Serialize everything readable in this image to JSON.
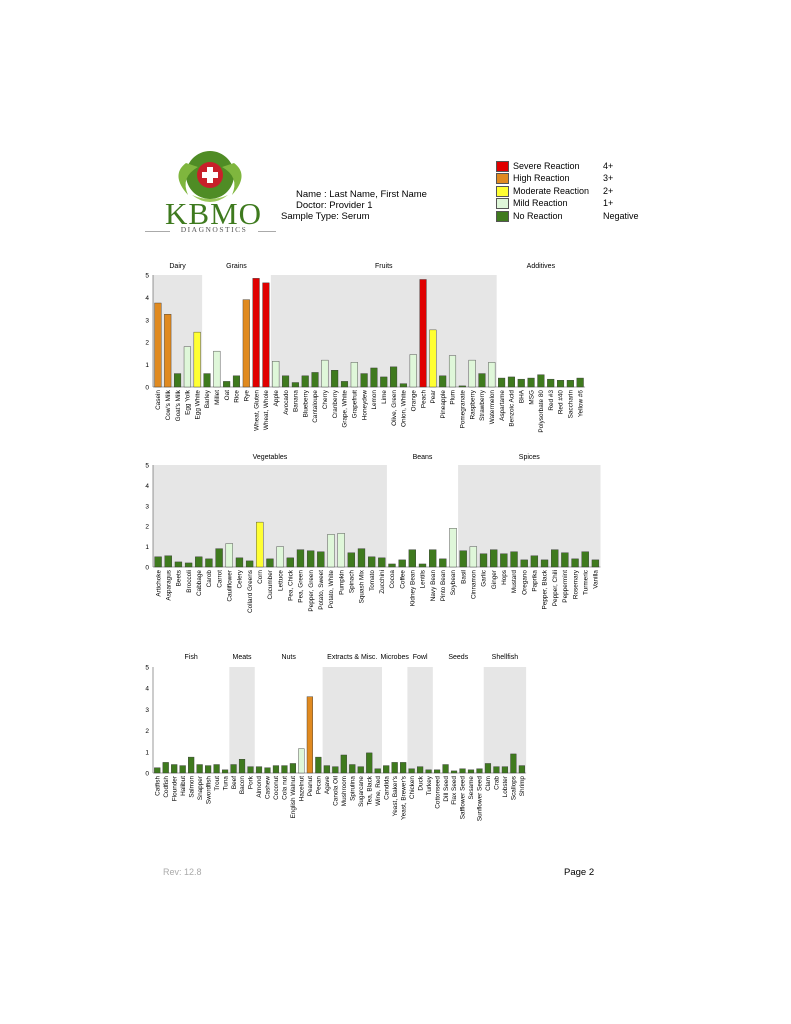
{
  "header": {
    "brand": "KBMO",
    "brand_sub": "DIAGNOSTICS",
    "name_line": "Name : Last Name, First Name",
    "doctor_line": "Doctor: Provider 1",
    "sample_line": "Sample Type: Serum"
  },
  "legend": [
    {
      "label": "Severe Reaction",
      "code": "4+",
      "color": "#e00000"
    },
    {
      "label": "High Reaction",
      "code": "3+",
      "color": "#e08a20"
    },
    {
      "label": "Moderate Reaction",
      "code": "2+",
      "color": "#ffff33"
    },
    {
      "label": "Mild Reaction",
      "code": "1+",
      "color": "#dff7d9"
    },
    {
      "label": "No Reaction",
      "code": "Negative",
      "color": "#3f7a1e"
    }
  ],
  "colors": {
    "severe": "#e00000",
    "high": "#e08a20",
    "moderate": "#ffff33",
    "mild": "#dff7d9",
    "none": "#3f7a1e",
    "group_shade": "#e6e6e6"
  },
  "chart_data": [
    {
      "type": "bar",
      "ylim": [
        0,
        5
      ],
      "yticks": [
        "0",
        "1",
        "2",
        "3",
        "4",
        "5"
      ],
      "groups": [
        {
          "name": "Dairy",
          "shaded": true,
          "items": [
            [
              "Casein",
              3.75
            ],
            [
              "Cow's Milk",
              3.25
            ],
            [
              "Goat's Milk",
              0.6
            ],
            [
              "Egg Yolk",
              1.8
            ],
            [
              "Egg White",
              2.45
            ]
          ]
        },
        {
          "name": "Grains",
          "shaded": false,
          "items": [
            [
              "Barley",
              0.6
            ],
            [
              "Millet",
              1.6
            ],
            [
              "Oat",
              0.25
            ],
            [
              "Rice",
              0.5
            ],
            [
              "Rye",
              3.9
            ],
            [
              "Wheat, Gluten",
              4.85
            ],
            [
              "Wheat, Whole",
              4.65
            ]
          ]
        },
        {
          "name": "Fruits",
          "shaded": true,
          "items": [
            [
              "Apple",
              1.15
            ],
            [
              "Avocado",
              0.5
            ],
            [
              "Banana",
              0.2
            ],
            [
              "Blueberry",
              0.5
            ],
            [
              "Cantaloupe",
              0.65
            ],
            [
              "Cherry",
              1.2
            ],
            [
              "Cranberry",
              0.75
            ],
            [
              "Grape, White",
              0.25
            ],
            [
              "Grapefruit",
              1.1
            ],
            [
              "Honeydew",
              0.6
            ],
            [
              "Lemon",
              0.85
            ],
            [
              "Lime",
              0.45
            ],
            [
              "Olive, Green",
              0.9
            ],
            [
              "Onion, White",
              0.15
            ],
            [
              "Orange",
              1.45
            ],
            [
              "Peach",
              4.8
            ],
            [
              "Pear",
              2.55
            ],
            [
              "Pineapple",
              0.5
            ],
            [
              "Plum",
              1.4
            ],
            [
              "Pomegranate",
              0.05
            ],
            [
              "Raspberry",
              1.2
            ],
            [
              "Strawberry",
              0.6
            ],
            [
              "Watermelon",
              1.1
            ]
          ]
        },
        {
          "name": "Additives",
          "shaded": false,
          "items": [
            [
              "Aspartame",
              0.4
            ],
            [
              "Benzoic Acid",
              0.45
            ],
            [
              "BHA",
              0.35
            ],
            [
              "MSG",
              0.4
            ],
            [
              "Polysorbate 80",
              0.55
            ],
            [
              "Red #3",
              0.35
            ],
            [
              "Red #40",
              0.3
            ],
            [
              "Saccharin",
              0.3
            ],
            [
              "Yellow #6",
              0.4
            ]
          ]
        }
      ]
    },
    {
      "type": "bar",
      "ylim": [
        0,
        5
      ],
      "yticks": [
        "0",
        "1",
        "2",
        "3",
        "4",
        "5"
      ],
      "groups": [
        {
          "name": "Vegetables",
          "shaded": true,
          "items": [
            [
              "Artichoke",
              0.5
            ],
            [
              "Asparagus",
              0.55
            ],
            [
              "Beets",
              0.25
            ],
            [
              "Broccoli",
              0.2
            ],
            [
              "Cabbage",
              0.5
            ],
            [
              "Carob",
              0.4
            ],
            [
              "Carrot",
              0.9
            ],
            [
              "Cauliflower",
              1.15
            ],
            [
              "Celery",
              0.45
            ],
            [
              "Collard Greens",
              0.3
            ],
            [
              "Corn",
              2.2
            ],
            [
              "Cucumber",
              0.4
            ],
            [
              "Lettuce",
              1.0
            ],
            [
              "Pea, Chick",
              0.45
            ],
            [
              "Pea, Green",
              0.85
            ],
            [
              "Pepper, Green",
              0.8
            ],
            [
              "Potato, Sweet",
              0.75
            ],
            [
              "Potato, White",
              1.6
            ],
            [
              "Pumpkin",
              1.65
            ],
            [
              "Spinach",
              0.7
            ],
            [
              "Squash Mix",
              0.9
            ],
            [
              "Tomato",
              0.5
            ],
            [
              "Zucchini",
              0.45
            ]
          ]
        },
        {
          "name": "Beans",
          "shaded": false,
          "items": [
            [
              "Cocoa",
              0.15
            ],
            [
              "Coffee",
              0.35
            ],
            [
              "Kidney Bean",
              0.85
            ],
            [
              "Lentils",
              0.15
            ],
            [
              "Navy Bean",
              0.85
            ],
            [
              "Pinto Bean",
              0.4
            ],
            [
              "Soybean",
              1.9
            ]
          ]
        },
        {
          "name": "Spices",
          "shaded": true,
          "items": [
            [
              "Basil",
              0.8
            ],
            [
              "Cinnamon",
              1.0
            ],
            [
              "Garlic",
              0.65
            ],
            [
              "Ginger",
              0.85
            ],
            [
              "Hops",
              0.65
            ],
            [
              "Mustard",
              0.75
            ],
            [
              "Oregano",
              0.35
            ],
            [
              "Paprika",
              0.55
            ],
            [
              "Pepper, Black",
              0.35
            ],
            [
              "Pepper, Chili",
              0.85
            ],
            [
              "Peppermint",
              0.7
            ],
            [
              "Rosemary",
              0.4
            ],
            [
              "Turmeric",
              0.75
            ],
            [
              "Vanilla",
              0.35
            ]
          ]
        }
      ]
    },
    {
      "type": "bar",
      "ylim": [
        0,
        5
      ],
      "yticks": [
        "0",
        "1",
        "2",
        "3",
        "4",
        "5"
      ],
      "groups": [
        {
          "name": "Fish",
          "shaded": false,
          "items": [
            [
              "Catfish",
              0.25
            ],
            [
              "Codfish",
              0.5
            ],
            [
              "Flounder",
              0.4
            ],
            [
              "Halibut",
              0.35
            ],
            [
              "Salmon",
              0.75
            ],
            [
              "Snapper",
              0.4
            ],
            [
              "Swordfish",
              0.35
            ],
            [
              "Trout",
              0.4
            ],
            [
              "Tuna",
              0.15
            ]
          ]
        },
        {
          "name": "Meats",
          "shaded": true,
          "items": [
            [
              "Beef",
              0.4
            ],
            [
              "Bacon",
              0.65
            ],
            [
              "Pork",
              0.3
            ]
          ]
        },
        {
          "name": "Nuts",
          "shaded": false,
          "items": [
            [
              "Almond",
              0.3
            ],
            [
              "Cashew",
              0.25
            ],
            [
              "Coconut",
              0.35
            ],
            [
              "Cola nut",
              0.35
            ],
            [
              "English Walnut",
              0.45
            ],
            [
              "Hazelnut",
              1.15
            ],
            [
              "Peanut",
              3.6
            ],
            [
              "Pecan",
              0.75
            ]
          ]
        },
        {
          "name": "Extracts & Misc.",
          "shaded": true,
          "items": [
            [
              "Agave",
              0.35
            ],
            [
              "Canola Oil",
              0.3
            ],
            [
              "Mushroom",
              0.85
            ],
            [
              "Spirulina",
              0.4
            ],
            [
              "Sugarcane",
              0.3
            ],
            [
              "Tea, Black",
              0.95
            ],
            [
              "Wine, Red",
              0.2
            ]
          ]
        },
        {
          "name": "Microbes",
          "shaded": false,
          "items": [
            [
              "Candida",
              0.35
            ],
            [
              "Yeast, Baker's",
              0.5
            ],
            [
              "Yeast, Brewer's",
              0.5
            ]
          ]
        },
        {
          "name": "Fowl",
          "shaded": true,
          "items": [
            [
              "Chicken",
              0.2
            ],
            [
              "Duck",
              0.3
            ],
            [
              "Turkey",
              0.15
            ]
          ]
        },
        {
          "name": "Seeds",
          "shaded": false,
          "items": [
            [
              "Cottonseed",
              0.15
            ],
            [
              "Dill Seed",
              0.4
            ],
            [
              "Flax Seed",
              0.1
            ],
            [
              "Safflower Seed",
              0.2
            ],
            [
              "Sesame",
              0.15
            ],
            [
              "Sunflower Seed",
              0.2
            ]
          ]
        },
        {
          "name": "Shellfish",
          "shaded": true,
          "items": [
            [
              "Clam",
              0.45
            ],
            [
              "Crab",
              0.3
            ],
            [
              "Lobster",
              0.3
            ],
            [
              "Scallops",
              0.9
            ],
            [
              "Shrimp",
              0.35
            ]
          ]
        }
      ]
    }
  ],
  "footer": {
    "rev": "Rev: 12.8",
    "page": "Page 2"
  }
}
